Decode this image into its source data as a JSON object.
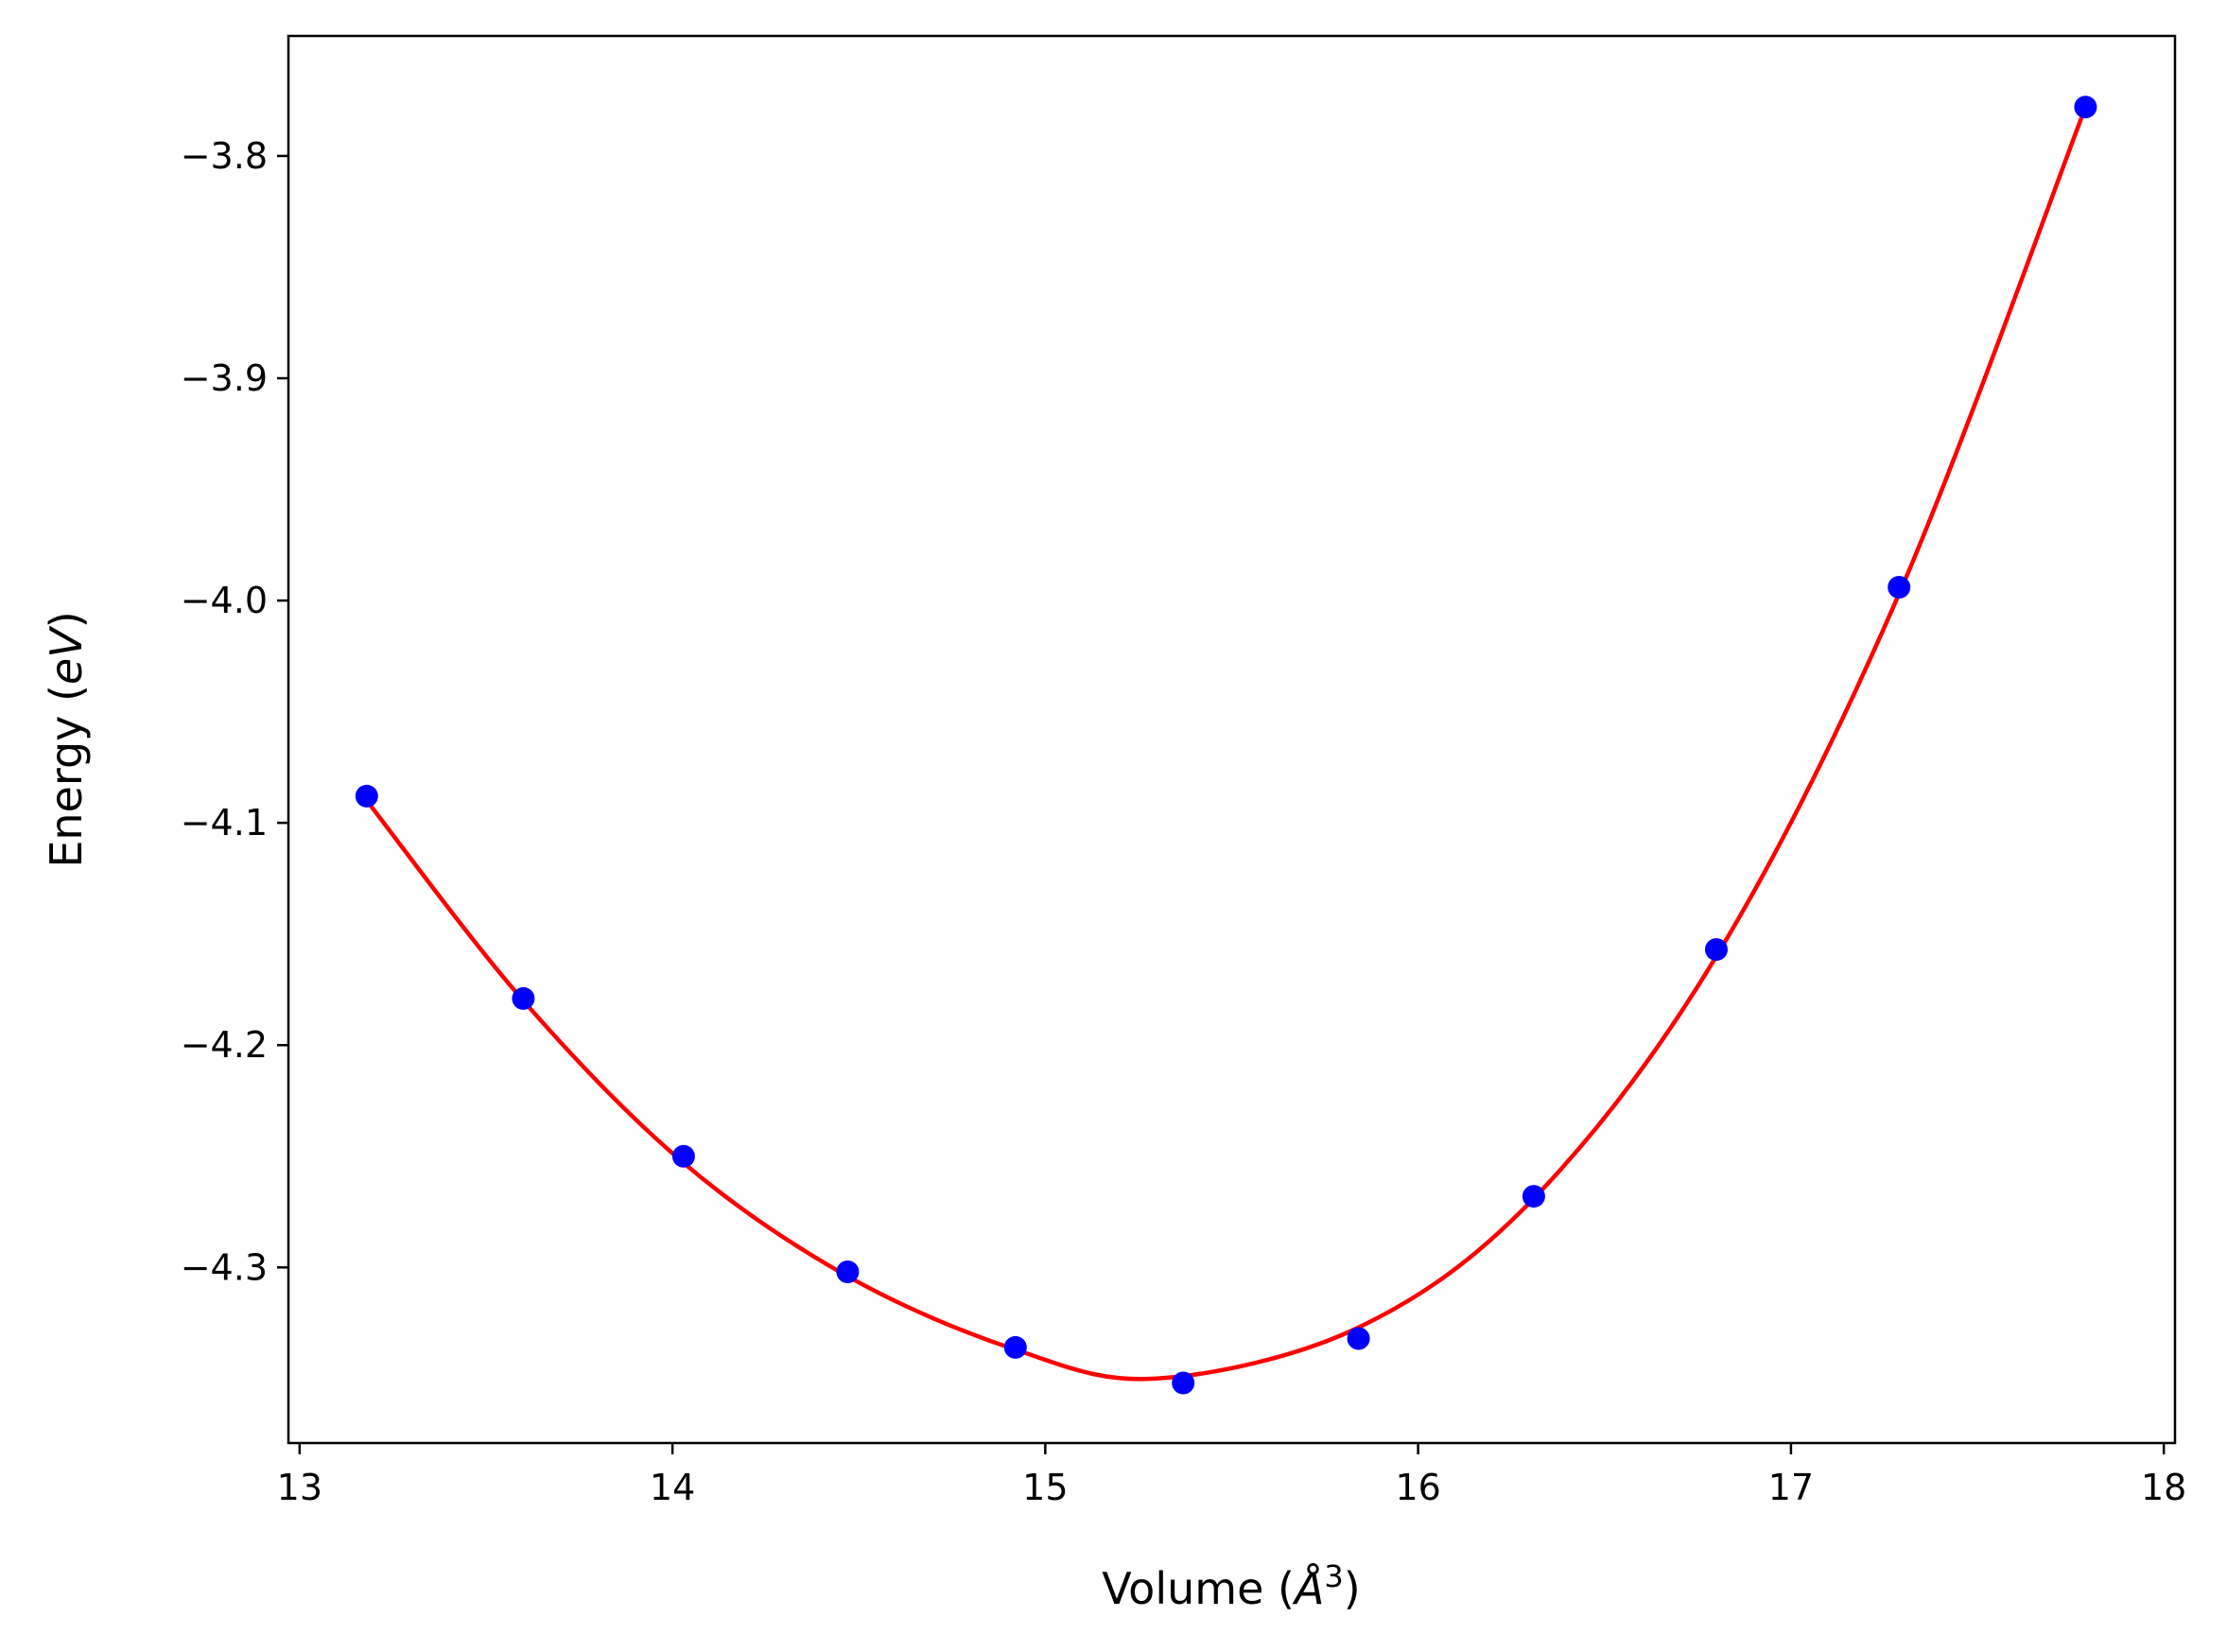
{
  "chart_data": {
    "type": "scatter",
    "title": "",
    "xlabel": "Volume ($\\AA^3$)",
    "ylabel": "Energy ($eV$)",
    "xlabel_parts": {
      "prefix": "Volume (",
      "italic": "Å",
      "sup": "3",
      "suffix": ")"
    },
    "ylabel_parts": {
      "prefix": "Energy (",
      "italic": "eV",
      "suffix": ")"
    },
    "xlim": [
      12.97,
      18.03
    ],
    "ylim": [
      -4.379,
      -3.746
    ],
    "xticks": [
      13,
      14,
      15,
      16,
      17,
      18
    ],
    "yticks": [
      -4.3,
      -4.2,
      -4.1,
      -4.0,
      -3.9,
      -3.8
    ],
    "xtick_labels": [
      "13",
      "14",
      "15",
      "16",
      "17",
      "18"
    ],
    "ytick_labels": [
      "−4.3",
      "−4.2",
      "−4.1",
      "−4.0",
      "−3.9",
      "−3.8"
    ],
    "grid": false,
    "legend": "none",
    "series": [
      {
        "kind": "points",
        "color": "#0000ff",
        "x": [
          13.18,
          13.6,
          14.03,
          14.47,
          14.92,
          15.37,
          15.84,
          16.31,
          16.8,
          17.29,
          17.79
        ],
        "y": [
          -4.088,
          -4.179,
          -4.25,
          -4.302,
          -4.336,
          -4.352,
          -4.332,
          -4.268,
          -4.157,
          -3.994,
          -3.778
        ]
      },
      {
        "kind": "fit-line",
        "color": "#ff0000",
        "x": [
          13.18,
          13.6,
          14.03,
          14.47,
          14.92,
          15.3,
          15.84,
          16.31,
          16.8,
          17.29,
          17.79
        ],
        "y": [
          -4.09,
          -4.18,
          -4.253,
          -4.304,
          -4.337,
          -4.35,
          -4.327,
          -4.269,
          -4.16,
          -3.997,
          -3.778
        ]
      }
    ]
  }
}
